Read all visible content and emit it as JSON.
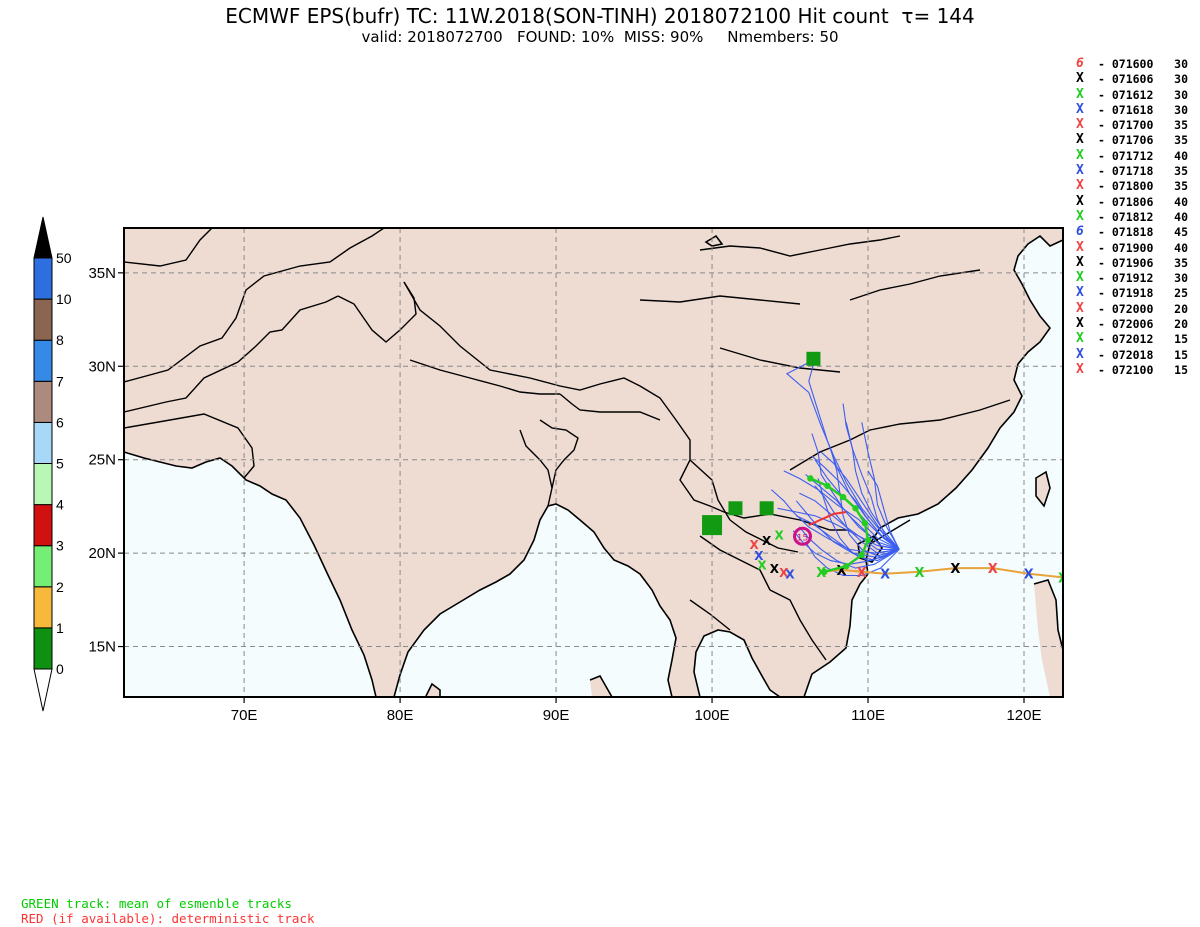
{
  "header": {
    "title": "ECMWF EPS(bufr) TC: 11W.2018(SON-TINH) 2018072100 Hit count  τ= 144",
    "subtitle": "valid: 2018072700   FOUND: 10%  MISS: 90%     Nmembers: 50"
  },
  "footer": {
    "green_note": "GREEN track: mean of esmenble tracks",
    "red_note": "RED (if available): deterministic track",
    "green_color": "#00cc00",
    "red_color": "#ff3333"
  },
  "colors": {
    "land": "#eedbd2",
    "sea": "#f4fcfd",
    "ensemble_tracks": "#3d5ef0",
    "mean_track": "#22cc22",
    "forecast_track": "#e8a33a",
    "hit_count_boxes": "#129a12"
  },
  "colorbar": {
    "labels": [
      "0",
      "1",
      "2",
      "3",
      "4",
      "5",
      "6",
      "7",
      "8",
      "10",
      "50"
    ],
    "colors": [
      "#109010",
      "#f7b93b",
      "#74ee74",
      "#d11010",
      "#b8f7b4",
      "#a8d8f8",
      "#ad8a7e",
      "#348ae6",
      "#8a6552",
      "#2e6fdf"
    ]
  },
  "map": {
    "lat_labels": [
      "35N",
      "30N",
      "25N",
      "20N",
      "15N"
    ],
    "lon_labels": [
      "70E",
      "80E",
      "90E",
      "100E",
      "110E",
      "120E"
    ],
    "lat_values": [
      35,
      30,
      25,
      20,
      15
    ],
    "lon_values": [
      70,
      80,
      90,
      100,
      110,
      120
    ],
    "lon_range": [
      62.3,
      122.5
    ],
    "lat_range": [
      12.3,
      37.4
    ],
    "grid": "dashed",
    "storm_symbol_label": "15"
  },
  "legend": [
    {
      "marker": "storm-icon",
      "color": "#ee4444",
      "time": "071600",
      "speed": "30"
    },
    {
      "marker": "x-marker",
      "color": "#000000",
      "time": "071606",
      "speed": "30"
    },
    {
      "marker": "x-marker",
      "color": "#22cc22",
      "time": "071612",
      "speed": "30"
    },
    {
      "marker": "x-marker",
      "color": "#2f4fe0",
      "time": "071618",
      "speed": "30"
    },
    {
      "marker": "x-marker",
      "color": "#ee4444",
      "time": "071700",
      "speed": "35"
    },
    {
      "marker": "x-marker",
      "color": "#000000",
      "time": "071706",
      "speed": "35"
    },
    {
      "marker": "x-marker",
      "color": "#22cc22",
      "time": "071712",
      "speed": "40"
    },
    {
      "marker": "x-marker",
      "color": "#2f4fe0",
      "time": "071718",
      "speed": "35"
    },
    {
      "marker": "x-marker",
      "color": "#ee4444",
      "time": "071800",
      "speed": "35"
    },
    {
      "marker": "x-marker",
      "color": "#000000",
      "time": "071806",
      "speed": "40"
    },
    {
      "marker": "x-marker",
      "color": "#22cc22",
      "time": "071812",
      "speed": "40"
    },
    {
      "marker": "storm-icon",
      "color": "#2f4fe0",
      "time": "071818",
      "speed": "45"
    },
    {
      "marker": "x-marker",
      "color": "#ee4444",
      "time": "071900",
      "speed": "40"
    },
    {
      "marker": "x-marker",
      "color": "#000000",
      "time": "071906",
      "speed": "35"
    },
    {
      "marker": "x-marker",
      "color": "#22cc22",
      "time": "071912",
      "speed": "30"
    },
    {
      "marker": "x-marker",
      "color": "#2f4fe0",
      "time": "071918",
      "speed": "25"
    },
    {
      "marker": "x-marker",
      "color": "#ee4444",
      "time": "072000",
      "speed": "20"
    },
    {
      "marker": "x-marker",
      "color": "#000000",
      "time": "072006",
      "speed": "20"
    },
    {
      "marker": "x-marker",
      "color": "#22cc22",
      "time": "072012",
      "speed": "15"
    },
    {
      "marker": "x-marker",
      "color": "#2f4fe0",
      "time": "072018",
      "speed": "15"
    },
    {
      "marker": "x-marker",
      "color": "#ee4444",
      "time": "072100",
      "speed": "15"
    }
  ]
}
